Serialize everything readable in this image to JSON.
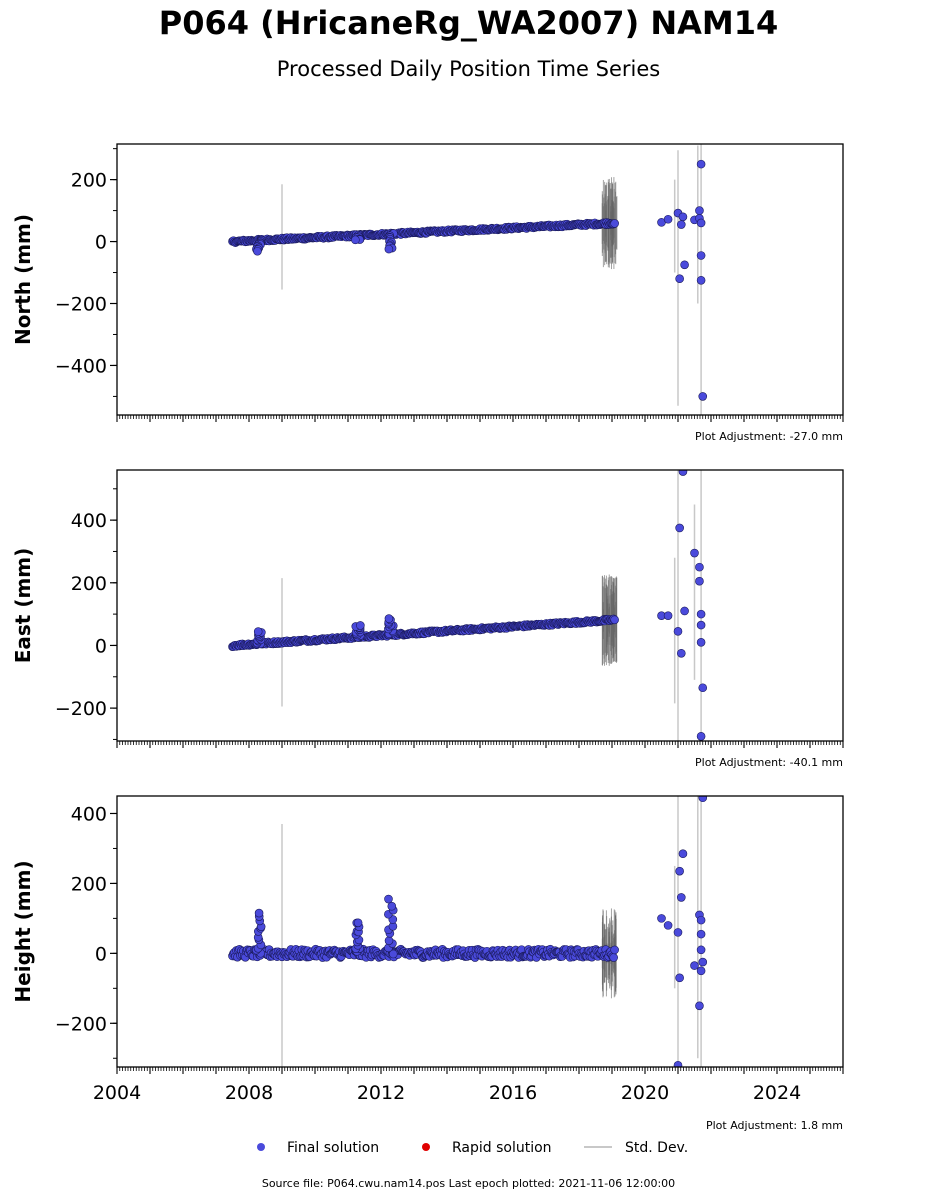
{
  "title": "P064 (HricaneRg_WA2007) NAM14",
  "subtitle": "Processed Daily Position Time Series",
  "footer": "Source file: P064.cwu.nam14.pos  Last epoch plotted: 2021-11-06 12:00:00",
  "legend": {
    "final_label": "Final solution",
    "rapid_label": "Rapid solution",
    "std_label": "Std. Dev.",
    "final_color": "#4a4adb",
    "rapid_color": "#e00000",
    "std_color": "#c8c8c8"
  },
  "chart_data": [
    {
      "type": "scatter",
      "ylabel": "North (mm)",
      "adjustment_label": "Plot Adjustment: -27.0 mm",
      "xlim": [
        2004,
        2026
      ],
      "ylim": [
        -560,
        315
      ],
      "yticks": [
        -400,
        -200,
        0,
        200
      ],
      "ytick_labels": [
        "−400",
        "−200",
        "0",
        "200"
      ],
      "trend": [
        [
          2007.5,
          0
        ],
        [
          2019.1,
          60
        ]
      ],
      "noise": 4,
      "spikes": [
        {
          "x": 2008.3,
          "y": -30
        },
        {
          "x": 2011.3,
          "y": 4
        },
        {
          "x": 2012.3,
          "y": -25
        }
      ],
      "late_points": [
        [
          2020.5,
          62
        ],
        [
          2020.7,
          72
        ],
        [
          2021.0,
          92
        ],
        [
          2021.05,
          -120
        ],
        [
          2021.2,
          -75
        ],
        [
          2021.5,
          70
        ],
        [
          2021.65,
          100
        ],
        [
          2021.65,
          75
        ],
        [
          2021.7,
          250
        ],
        [
          2021.7,
          -45
        ],
        [
          2021.7,
          -125
        ],
        [
          2021.75,
          -500
        ],
        [
          2021.1,
          55
        ],
        [
          2021.15,
          80
        ],
        [
          2021.7,
          60
        ]
      ],
      "std_bars": [
        [
          2009.0,
          -155,
          185
        ],
        [
          2021.0,
          -530,
          295
        ],
        [
          2021.7,
          -560,
          315
        ],
        [
          2020.9,
          -100,
          200
        ],
        [
          2021.6,
          -200,
          310
        ]
      ]
    },
    {
      "type": "scatter",
      "ylabel": "East (mm)",
      "adjustment_label": "Plot Adjustment: -40.1 mm",
      "xlim": [
        2004,
        2026
      ],
      "ylim": [
        -305,
        560
      ],
      "yticks": [
        -200,
        0,
        200,
        400
      ],
      "ytick_labels": [
        "−200",
        "0",
        "200",
        "400"
      ],
      "trend": [
        [
          2007.5,
          0
        ],
        [
          2019.1,
          82
        ]
      ],
      "noise": 4,
      "spikes": [
        {
          "x": 2008.3,
          "y": 45
        },
        {
          "x": 2011.3,
          "y": 65
        },
        {
          "x": 2012.3,
          "y": 85
        }
      ],
      "late_points": [
        [
          2020.5,
          95
        ],
        [
          2020.7,
          95
        ],
        [
          2021.0,
          45
        ],
        [
          2021.05,
          375
        ],
        [
          2021.1,
          -25
        ],
        [
          2021.15,
          555
        ],
        [
          2021.2,
          110
        ],
        [
          2021.5,
          295
        ],
        [
          2021.65,
          250
        ],
        [
          2021.65,
          205
        ],
        [
          2021.7,
          100
        ],
        [
          2021.7,
          65
        ],
        [
          2021.7,
          10
        ],
        [
          2021.75,
          -135
        ],
        [
          2021.7,
          -290
        ]
      ],
      "std_bars": [
        [
          2009.0,
          -195,
          215
        ],
        [
          2021.0,
          -305,
          560
        ],
        [
          2021.7,
          -305,
          560
        ],
        [
          2020.9,
          -185,
          280
        ],
        [
          2021.5,
          -110,
          450
        ]
      ]
    },
    {
      "type": "scatter",
      "ylabel": "Height (mm)",
      "adjustment_label": "Plot Adjustment: 1.8 mm",
      "xlim": [
        2004,
        2026
      ],
      "ylim": [
        -325,
        450
      ],
      "yticks": [
        -200,
        0,
        200,
        400
      ],
      "ytick_labels": [
        "−200",
        "0",
        "200",
        "400"
      ],
      "xticks": [
        2004,
        2008,
        2012,
        2016,
        2020,
        2024
      ],
      "xtick_labels": [
        "2004",
        "2008",
        "2012",
        "2016",
        "2020",
        "2024"
      ],
      "trend": [
        [
          2007.5,
          0
        ],
        [
          2019.1,
          0
        ]
      ],
      "noise": 12,
      "spikes": [
        {
          "x": 2008.3,
          "y": 110
        },
        {
          "x": 2011.3,
          "y": 90
        },
        {
          "x": 2012.3,
          "y": 150
        }
      ],
      "late_points": [
        [
          2020.5,
          100
        ],
        [
          2020.7,
          80
        ],
        [
          2021.0,
          60
        ],
        [
          2021.05,
          235
        ],
        [
          2021.1,
          160
        ],
        [
          2021.15,
          285
        ],
        [
          2021.05,
          -70
        ],
        [
          2021.5,
          -35
        ],
        [
          2021.65,
          110
        ],
        [
          2021.7,
          95
        ],
        [
          2021.7,
          55
        ],
        [
          2021.7,
          10
        ],
        [
          2021.75,
          -25
        ],
        [
          2021.7,
          -50
        ],
        [
          2021.65,
          -150
        ],
        [
          2021.75,
          445
        ],
        [
          2021.0,
          -320
        ]
      ],
      "std_bars": [
        [
          2009.0,
          -325,
          370
        ],
        [
          2021.0,
          -325,
          450
        ],
        [
          2021.7,
          -325,
          450
        ],
        [
          2020.9,
          -100,
          250
        ],
        [
          2021.6,
          -300,
          450
        ]
      ]
    }
  ]
}
